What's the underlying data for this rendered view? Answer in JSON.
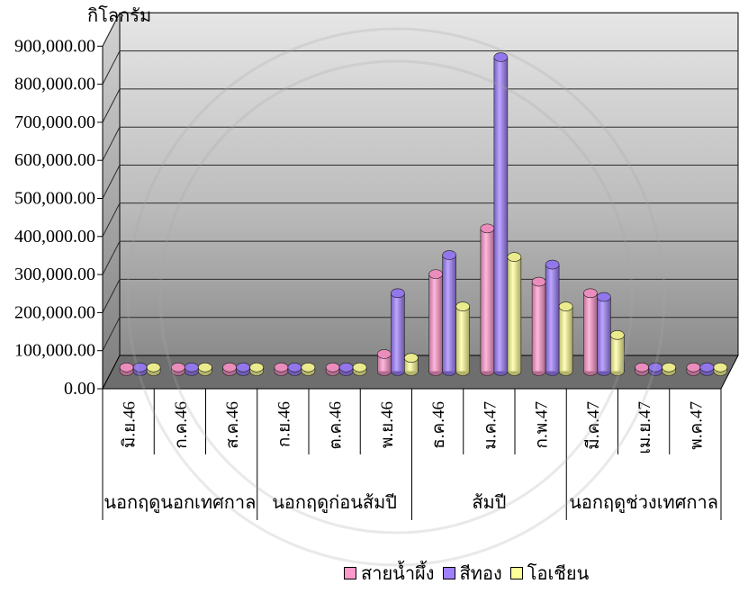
{
  "chart_data": {
    "type": "bar",
    "bar_shape": "cylinder",
    "projection": "3d",
    "ylabel": "กิโลกรัม",
    "ylim": [
      0,
      900000
    ],
    "yticks": [
      "0.00",
      "100,000.00",
      "200,000.00",
      "300,000.00",
      "400,000.00",
      "500,000.00",
      "600,000.00",
      "700,000.00",
      "800,000.00",
      "900,000.00"
    ],
    "categories": [
      "มิ.ย.46",
      "ก.ค.46",
      "ส.ค.46",
      "ก.ย.46",
      "ต.ค.46",
      "พ.ย.46",
      "ธ.ค.46",
      "ม.ค.47",
      "ก.พ.47",
      "มี.ค.47",
      "เม.ย.47",
      "พ.ค.47"
    ],
    "category_groups": [
      {
        "label": "นอกฤดูนอกเทศกาล",
        "categories": [
          "มิ.ย.46",
          "ก.ค.46",
          "ส.ค.46"
        ]
      },
      {
        "label": "นอกฤดูก่อนส้มปี",
        "categories": [
          "ก.ย.46",
          "ต.ค.46",
          "พ.ย.46"
        ]
      },
      {
        "label": "ส้มปี",
        "categories": [
          "ธ.ค.46",
          "ม.ค.47",
          "ก.พ.47"
        ]
      },
      {
        "label": "นอกฤดูช่วงเทศกาล",
        "categories": [
          "มี.ค.47",
          "เม.ย.47",
          "พ.ค.47"
        ]
      }
    ],
    "series": [
      {
        "name": "สายน้ำผึ้ง",
        "color": "#ff99cc",
        "values": [
          10000,
          10000,
          10000,
          10000,
          10000,
          45000,
          255000,
          375000,
          235000,
          205000,
          10000,
          10000
        ]
      },
      {
        "name": "สีทอง",
        "color": "#9f80ff",
        "values": [
          10000,
          10000,
          10000,
          10000,
          10000,
          205000,
          305000,
          825000,
          280000,
          195000,
          10000,
          10000
        ]
      },
      {
        "name": "โอเชียน",
        "color": "#ffff99",
        "values": [
          10000,
          10000,
          10000,
          10000,
          10000,
          35000,
          170000,
          300000,
          170000,
          95000,
          10000,
          10000
        ]
      }
    ],
    "grid": true,
    "legend": "bottom"
  }
}
